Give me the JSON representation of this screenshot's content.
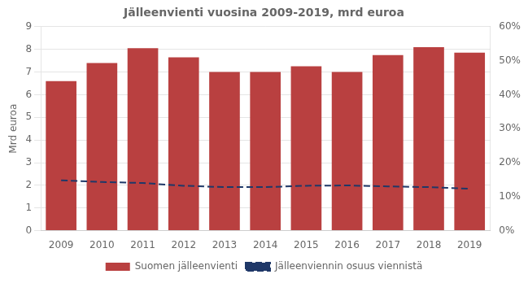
{
  "chart_data": {
    "type": "bar",
    "title": "Jälleenvienti vuosina 2009-2019, mrd euroa",
    "categories": [
      "2009",
      "2010",
      "2011",
      "2012",
      "2013",
      "2014",
      "2015",
      "2016",
      "2017",
      "2018",
      "2019"
    ],
    "series": [
      {
        "name": "Suomen jälleenvienti",
        "type": "bar",
        "color": "#b94040",
        "values": [
          6.6,
          7.4,
          8.05,
          7.65,
          7.0,
          7.0,
          7.25,
          7.0,
          7.75,
          8.1,
          7.85
        ]
      },
      {
        "name": "Jälleenviennin osuus viennistä",
        "type": "line",
        "color": "#1f3868",
        "line_style": "dashed",
        "axis": "y2",
        "values": [
          0.148,
          0.143,
          0.14,
          0.132,
          0.128,
          0.128,
          0.132,
          0.133,
          0.13,
          0.128,
          0.123
        ]
      }
    ],
    "ylabel": "Mrd euroa",
    "ylim": [
      0,
      9
    ],
    "yticks": [
      0,
      1,
      2,
      3,
      4,
      5,
      6,
      7,
      8,
      9
    ],
    "y2lim": [
      0,
      0.6
    ],
    "y2ticks": [
      {
        "value": 0.0,
        "label": "0%"
      },
      {
        "value": 0.1,
        "label": "10%"
      },
      {
        "value": 0.2,
        "label": "20%"
      },
      {
        "value": 0.3,
        "label": "30%"
      },
      {
        "value": 0.4,
        "label": "40%"
      },
      {
        "value": 0.5,
        "label": "50%"
      },
      {
        "value": 0.6,
        "label": "60%"
      }
    ],
    "grid": true,
    "legend": "bottom"
  }
}
